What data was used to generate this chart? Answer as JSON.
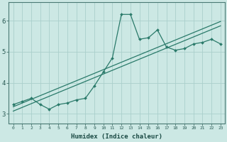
{
  "x_data": [
    0,
    1,
    2,
    3,
    4,
    5,
    6,
    7,
    8,
    9,
    10,
    11,
    12,
    13,
    14,
    15,
    16,
    17,
    18,
    19,
    20,
    21,
    22,
    23
  ],
  "y_main": [
    3.3,
    3.4,
    3.5,
    3.3,
    3.15,
    3.3,
    3.35,
    3.45,
    3.5,
    3.9,
    4.35,
    4.8,
    6.2,
    6.2,
    5.4,
    5.45,
    5.7,
    5.15,
    5.05,
    5.1,
    5.25,
    5.3,
    5.4,
    5.25
  ],
  "line_color": "#2a7a6a",
  "background_color": "#cce8e4",
  "grid_color": "#aacfcc",
  "ylabel_ticks": [
    3,
    4,
    5,
    6
  ],
  "xlabel": "Humidex (Indice chaleur)",
  "xlim": [
    -0.5,
    23.5
  ],
  "ylim": [
    2.7,
    6.6
  ],
  "reg_color": "#2a7a6a",
  "title": ""
}
